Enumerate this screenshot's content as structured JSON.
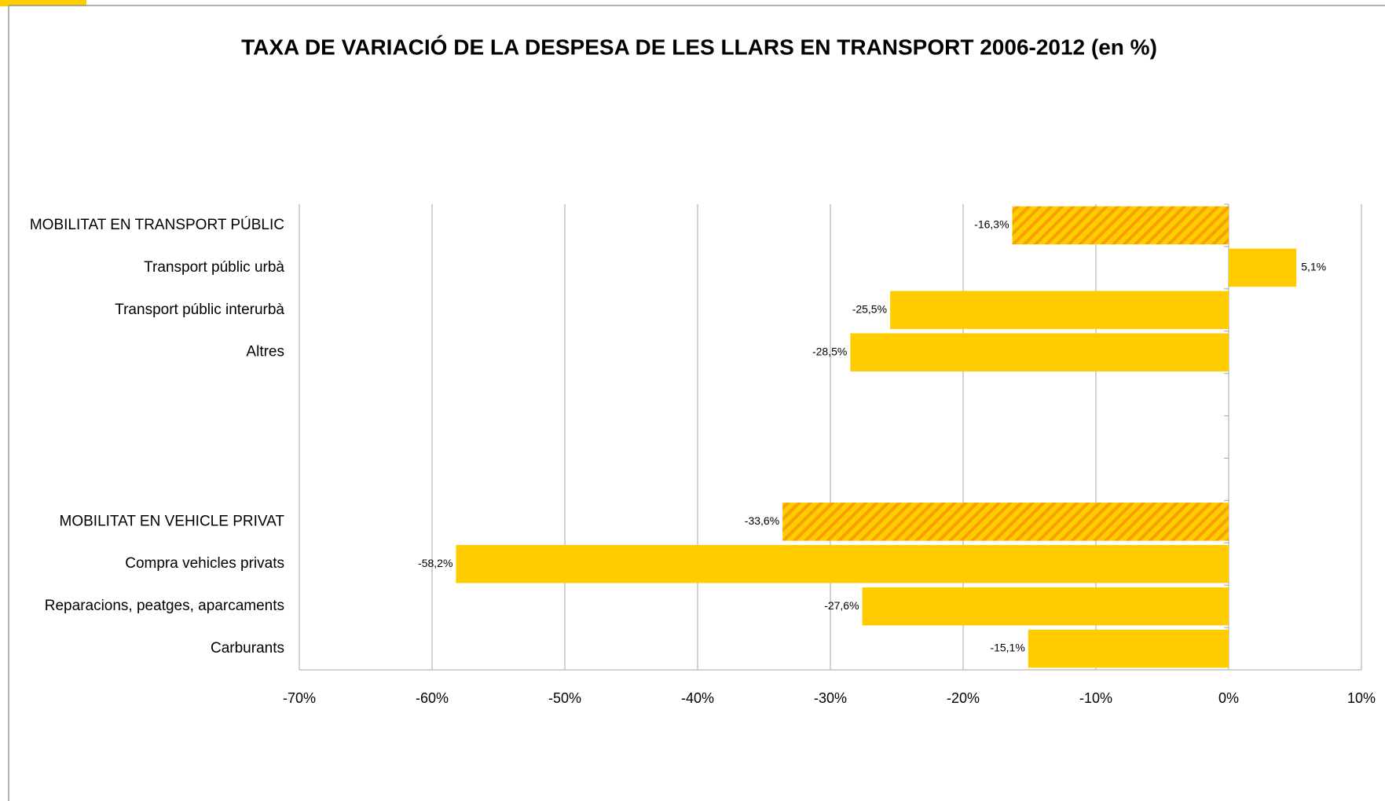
{
  "chart_data": {
    "type": "barh",
    "title": "TAXA DE VARIACIÓ DE LA DESPESA DE LES LLARS EN TRANSPORT 2006-2012 (en %)",
    "categories": [
      "MOBILITAT EN TRANSPORT PÚBLIC",
      "Transport públic urbà",
      "Transport públic interurbà",
      "Altres",
      null,
      null,
      null,
      "MOBILITAT EN VEHICLE PRIVAT",
      "Compra vehicles privats",
      "Reparacions, peatges, aparcaments",
      "Carburants"
    ],
    "values": [
      -16.3,
      5.1,
      -25.5,
      -28.5,
      null,
      null,
      null,
      -33.6,
      -58.2,
      -27.6,
      -15.1
    ],
    "value_labels": [
      "-16,3%",
      "5,1%",
      "-25,5%",
      "-28,5%",
      null,
      null,
      null,
      "-33,6%",
      "-58,2%",
      "-27,6%",
      "-15,1%"
    ],
    "hatched": [
      true,
      false,
      false,
      false,
      false,
      false,
      false,
      true,
      false,
      false,
      false
    ],
    "color": "#ffcc00",
    "hatch_color": "#f7a000",
    "xlim": [
      -70,
      10
    ],
    "xticks": [
      {
        "value": -70,
        "label": "-70%"
      },
      {
        "value": -60,
        "label": "-60%"
      },
      {
        "value": -50,
        "label": "-50%"
      },
      {
        "value": -40,
        "label": "-40%"
      },
      {
        "value": -30,
        "label": "-30%"
      },
      {
        "value": -20,
        "label": "-20%"
      },
      {
        "value": -10,
        "label": "-10%"
      },
      {
        "value": 0,
        "label": "0%"
      },
      {
        "value": 10,
        "label": "10%"
      }
    ],
    "grid": true
  }
}
